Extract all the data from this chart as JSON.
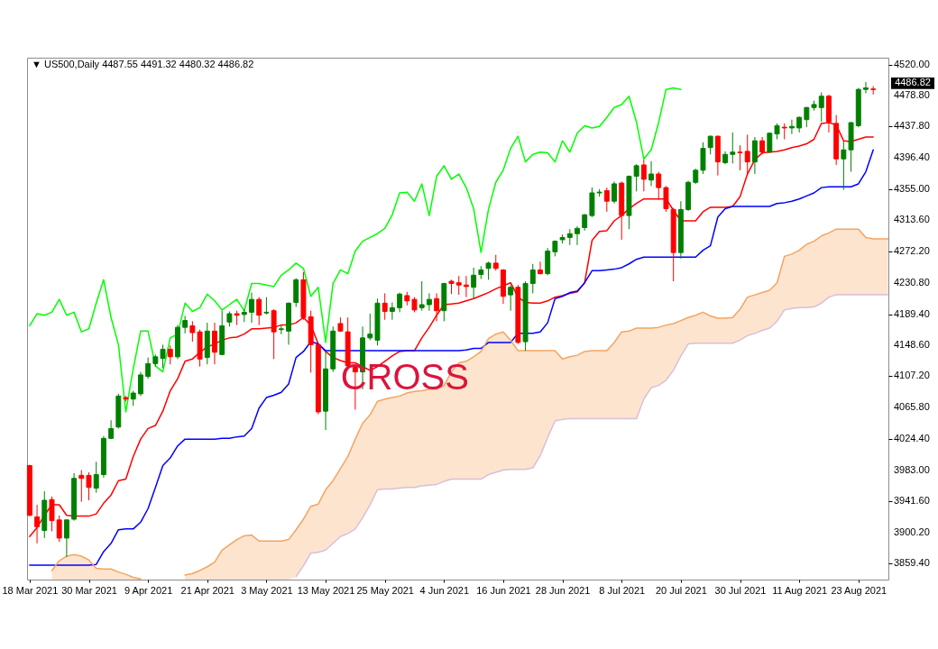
{
  "chart_data": {
    "type": "candlestick",
    "title": "▼ US500,Daily 4487.55 4491.32 4480.32 4486.82",
    "categories": [
      "18 Mar 2021",
      null,
      null,
      null,
      null,
      null,
      null,
      null,
      "30 Mar 2021",
      null,
      null,
      null,
      null,
      null,
      null,
      null,
      "9 Apr 2021",
      null,
      null,
      null,
      null,
      null,
      null,
      null,
      "21 Apr 2021",
      null,
      null,
      null,
      null,
      null,
      null,
      null,
      "3 May 2021",
      null,
      null,
      null,
      null,
      null,
      null,
      null,
      "13 May 2021",
      null,
      null,
      null,
      null,
      null,
      null,
      null,
      "25 May 2021",
      null,
      null,
      null,
      null,
      null,
      null,
      null,
      "4 Jun 2021",
      null,
      null,
      null,
      null,
      null,
      null,
      null,
      "16 Jun 2021",
      null,
      null,
      null,
      null,
      null,
      null,
      null,
      "28 Jun 2021",
      null,
      null,
      null,
      null,
      null,
      null,
      null,
      "8 Jul 2021",
      null,
      null,
      null,
      null,
      null,
      null,
      null,
      "20 Jul 2021",
      null,
      null,
      null,
      null,
      null,
      null,
      null,
      "30 Jul 2021",
      null,
      null,
      null,
      null,
      null,
      null,
      null,
      "11 Aug 2021",
      null,
      null,
      null,
      null,
      null,
      null,
      null,
      "23 Aug 2021",
      null,
      null,
      null,
      null
    ],
    "ohlc": [
      [
        3989,
        3990,
        3922,
        3923
      ],
      [
        3921,
        3937,
        3886,
        3908
      ],
      [
        3903,
        3955,
        3893,
        3943
      ],
      [
        3944,
        3948,
        3902,
        3916
      ],
      [
        3917,
        3923,
        3888,
        3893
      ],
      [
        3893,
        3918,
        3868,
        3917
      ],
      [
        3918,
        3979,
        3916,
        3972
      ],
      [
        3976,
        3983,
        3941,
        3972
      ],
      [
        3976,
        3980,
        3943,
        3960
      ],
      [
        3959,
        3994,
        3953,
        3977
      ],
      [
        3977,
        4028,
        3973,
        4025
      ],
      [
        4025,
        4049,
        4024,
        4038
      ],
      [
        4040,
        4084,
        4038,
        4081
      ],
      [
        4079,
        4081,
        4074,
        4077
      ],
      [
        4077,
        4088,
        4068,
        4085
      ],
      [
        4084,
        4113,
        4081,
        4109
      ],
      [
        4107,
        4132,
        4104,
        4124
      ],
      [
        4124,
        4136,
        4120,
        4133
      ],
      [
        4131,
        4149,
        4118,
        4143
      ],
      [
        4143,
        4148,
        4123,
        4133
      ],
      [
        4133,
        4175,
        4130,
        4172
      ],
      [
        4172,
        4187,
        4164,
        4181
      ],
      [
        4174,
        4180,
        4153,
        4165
      ],
      [
        4166,
        4169,
        4120,
        4130
      ],
      [
        4132,
        4178,
        4123,
        4167
      ],
      [
        4167,
        4178,
        4123,
        4139
      ],
      [
        4136,
        4194,
        4135,
        4174
      ],
      [
        4179,
        4193,
        4173,
        4190
      ],
      [
        4190,
        4194,
        4175,
        4188
      ],
      [
        4189,
        4196,
        4179,
        4192
      ],
      [
        4192,
        4218,
        4178,
        4209
      ],
      [
        4209,
        4212,
        4175,
        4188
      ],
      [
        4191,
        4212,
        4189,
        4192
      ],
      [
        4194,
        4196,
        4130,
        4166
      ],
      [
        4169,
        4175,
        4163,
        4170
      ],
      [
        4167,
        4205,
        4149,
        4204
      ],
      [
        4205,
        4237,
        4199,
        4235
      ],
      [
        4235,
        4245,
        4182,
        4185
      ],
      [
        4186,
        4194,
        4112,
        4149
      ],
      [
        4149,
        4150,
        4057,
        4060
      ],
      [
        4061,
        4140,
        4036,
        4117
      ],
      [
        4117,
        4173,
        4113,
        4167
      ],
      [
        4177,
        4185,
        4166,
        4167
      ],
      [
        4166,
        4185,
        4116,
        4121
      ],
      [
        4119,
        4123,
        4063,
        4113
      ],
      [
        4113,
        4173,
        4090,
        4158
      ],
      [
        4158,
        4190,
        4155,
        4163
      ],
      [
        4155,
        4210,
        4148,
        4204
      ],
      [
        4204,
        4217,
        4182,
        4193
      ],
      [
        4193,
        4205,
        4182,
        4198
      ],
      [
        4198,
        4218,
        4192,
        4216
      ],
      [
        4214,
        4219,
        4201,
        4207
      ],
      [
        4209,
        4212,
        4192,
        4195
      ],
      [
        4198,
        4233,
        4194,
        4202
      ],
      [
        4202,
        4217,
        4194,
        4209
      ],
      [
        4210,
        4217,
        4180,
        4194
      ],
      [
        4194,
        4231,
        4180,
        4230
      ],
      [
        4233,
        4235,
        4216,
        4230
      ],
      [
        4231,
        4240,
        4215,
        4228
      ],
      [
        4228,
        4240,
        4212,
        4226
      ],
      [
        4225,
        4251,
        4210,
        4241
      ],
      [
        4242,
        4253,
        4236,
        4248
      ],
      [
        4250,
        4259,
        4235,
        4257
      ],
      [
        4257,
        4268,
        4247,
        4250
      ],
      [
        4248,
        4249,
        4203,
        4213
      ],
      [
        4215,
        4228,
        4194,
        4225
      ],
      [
        4225,
        4228,
        4150,
        4152
      ],
      [
        4153,
        4233,
        4141,
        4230
      ],
      [
        4230,
        4256,
        4217,
        4248
      ],
      [
        4248,
        4259,
        4242,
        4243
      ],
      [
        4243,
        4277,
        4241,
        4273
      ],
      [
        4272,
        4287,
        4266,
        4286
      ],
      [
        4288,
        4295,
        4283,
        4291
      ],
      [
        4291,
        4302,
        4281,
        4296
      ],
      [
        4296,
        4306,
        4281,
        4303
      ],
      [
        4304,
        4322,
        4300,
        4321
      ],
      [
        4320,
        4357,
        4318,
        4350
      ],
      [
        4350,
        4355,
        4345,
        4351
      ],
      [
        4353,
        4357,
        4325,
        4339
      ],
      [
        4339,
        4365,
        4336,
        4362
      ],
      [
        4363,
        4365,
        4288,
        4320
      ],
      [
        4320,
        4373,
        4302,
        4372
      ],
      [
        4372,
        4388,
        4352,
        4386
      ],
      [
        4387,
        4394,
        4352,
        4368
      ],
      [
        4367,
        4392,
        4359,
        4375
      ],
      [
        4375,
        4378,
        4341,
        4357
      ],
      [
        4357,
        4359,
        4325,
        4329
      ],
      [
        4328,
        4330,
        4233,
        4271
      ],
      [
        4271,
        4339,
        4263,
        4328
      ],
      [
        4328,
        4366,
        4326,
        4364
      ],
      [
        4364,
        4382,
        4362,
        4380
      ],
      [
        4380,
        4417,
        4375,
        4409
      ],
      [
        4410,
        4426,
        4401,
        4425
      ],
      [
        4425,
        4426,
        4373,
        4391
      ],
      [
        4390,
        4405,
        4388,
        4401
      ],
      [
        4401,
        4430,
        4389,
        4404
      ],
      [
        4404,
        4413,
        4380,
        4403
      ],
      [
        4405,
        4427,
        4375,
        4391
      ],
      [
        4391,
        4424,
        4375,
        4419
      ],
      [
        4419,
        4424,
        4401,
        4404
      ],
      [
        4404,
        4430,
        4403,
        4429
      ],
      [
        4428,
        4442,
        4421,
        4439
      ],
      [
        4437,
        4442,
        4421,
        4436
      ],
      [
        4436,
        4447,
        4428,
        4438
      ],
      [
        4436,
        4451,
        4430,
        4450
      ],
      [
        4447,
        4464,
        4437,
        4463
      ],
      [
        4463,
        4472,
        4459,
        4467
      ],
      [
        4463,
        4483,
        4444,
        4478
      ],
      [
        4478,
        4480,
        4430,
        4444
      ],
      [
        4442,
        4453,
        4387,
        4395
      ],
      [
        4395,
        4418,
        4354,
        4407
      ],
      [
        4407,
        4444,
        4378,
        4443
      ],
      [
        4439,
        4489,
        4437,
        4487
      ],
      [
        4487,
        4497,
        4482,
        4489
      ],
      [
        4487.55,
        4491.32,
        4480.32,
        4486.82
      ],
      null,
      null
    ],
    "colors": [
      "#ff0000",
      "#ff0000",
      "#008000",
      "#ff0000",
      "#ff0000",
      "#008000",
      "#008000",
      "#ff0000",
      "#ff0000",
      "#008000",
      "#008000",
      "#008000",
      "#008000",
      "#ff0000",
      "#008000",
      "#008000",
      "#008000",
      "#008000",
      "#008000",
      "#ff0000",
      "#008000",
      "#008000",
      "#ff0000",
      "#ff0000",
      "#008000",
      "#ff0000",
      "#008000",
      "#008000",
      "#ff0000",
      "#008000",
      "#008000",
      "#ff0000",
      "#008000",
      "#ff0000",
      "#008000",
      "#008000",
      "#008000",
      "#ff0000",
      "#ff0000",
      "#ff0000",
      "#008000",
      "#008000",
      "#ff0000",
      "#ff0000",
      "#ff0000",
      "#008000",
      "#008000",
      "#008000",
      "#ff0000",
      "#008000",
      "#008000",
      "#ff0000",
      "#ff0000",
      "#008000",
      "#008000",
      "#ff0000",
      "#008000",
      "#ff0000",
      "#ff0000",
      "#ff0000",
      "#008000",
      "#008000",
      "#008000",
      "#ff0000",
      "#ff0000",
      "#008000",
      "#ff0000",
      "#008000",
      "#008000",
      "#ff0000",
      "#008000",
      "#008000",
      "#008000",
      "#008000",
      "#008000",
      "#008000",
      "#008000",
      "#008000",
      "#ff0000",
      "#008000",
      "#ff0000",
      "#008000",
      "#008000",
      "#ff0000",
      "#008000",
      "#ff0000",
      "#ff0000",
      "#ff0000",
      "#008000",
      "#008000",
      "#008000",
      "#008000",
      "#008000",
      "#ff0000",
      "#008000",
      "#008000",
      "#ff0000",
      "#ff0000",
      "#008000",
      "#ff0000",
      "#008000",
      "#008000",
      "#ff0000",
      "#008000",
      "#008000",
      "#008000",
      "#008000",
      "#008000",
      "#ff0000",
      "#ff0000",
      "#008000",
      "#008000",
      "#008000",
      "#008000",
      "#ff0000",
      null,
      null
    ],
    "series": [
      {
        "type": "line",
        "color": "#ff0000",
        "values": [
          3895,
          3907,
          3923,
          3937,
          3937,
          3923,
          3922,
          3922,
          3922,
          3925,
          3939,
          3950,
          3969,
          3971,
          4001,
          4024,
          4038,
          4042,
          4061,
          4088,
          4104,
          4127,
          4130,
          4139,
          4146,
          4150,
          4155,
          4158,
          4159,
          4163,
          4170,
          4170,
          4171,
          4172,
          4175,
          4175,
          4178,
          4185,
          4175,
          4150,
          4140,
          4132,
          4128,
          4125,
          4125,
          4120,
          4115,
          4120,
          4127,
          4134,
          4140,
          4141,
          4141,
          4158,
          4172,
          4188,
          4202,
          4203,
          4204,
          4207,
          4210,
          4214,
          4218,
          4223,
          4227,
          4231,
          4212,
          4205,
          4204,
          4204,
          4207,
          4212,
          4214,
          4217,
          4219,
          4231,
          4287,
          4299,
          4300,
          4313,
          4320,
          4329,
          4336,
          4342,
          4342,
          4342,
          4342,
          4327,
          4313,
          4313,
          4313,
          4325,
          4331,
          4331,
          4331,
          4332,
          4345,
          4375,
          4394,
          4403,
          4404,
          4405,
          4407,
          4410,
          4412,
          4415,
          4421,
          4442,
          4443,
          4440,
          4419,
          4418,
          4421,
          4424,
          4424,
          null,
          null
        ]
      },
      {
        "type": "line",
        "color": "#0000ff",
        "values": [
          3857,
          3857,
          3857,
          3857,
          3857,
          3857,
          3857,
          3857,
          3857,
          3858,
          3875,
          3886,
          3904,
          3905,
          3905,
          3914,
          3932,
          3960,
          3989,
          3999,
          4015,
          4024,
          4024,
          4024,
          4024,
          4024,
          4025,
          4025,
          4027,
          4028,
          4038,
          4065,
          4079,
          4082,
          4086,
          4097,
          4132,
          4140,
          4153,
          4150,
          4141,
          4141,
          4141,
          4141,
          4141,
          4141,
          4141,
          4141,
          4141,
          4141,
          4141,
          4141,
          4141,
          4141,
          4141,
          4141,
          4141,
          4141,
          4141,
          4142,
          4144,
          4144,
          4152,
          4152,
          4152,
          4152,
          4164,
          4164,
          4164,
          4166,
          4178,
          4210,
          4213,
          4218,
          4220,
          4231,
          4247,
          4247,
          4248,
          4249,
          4251,
          4256,
          4262,
          4265,
          4265,
          4265,
          4265,
          4265,
          4265,
          4265,
          4265,
          4274,
          4280,
          4318,
          4329,
          4332,
          4332,
          4332,
          4332,
          4332,
          4332,
          4336,
          4337,
          4339,
          4342,
          4346,
          4350,
          4357,
          4358,
          4358,
          4358,
          4358,
          4362,
          4378,
          4407,
          null,
          null
        ]
      },
      {
        "type": "line",
        "color": "#00ff00",
        "values": [
          4174,
          4190,
          4188,
          4192,
          4209,
          4188,
          4192,
          4166,
          4170,
          4204,
          4235,
          4185,
          4149,
          4060,
          4117,
          4167,
          4167,
          4121,
          4113,
          4158,
          4163,
          4204,
          4193,
          4198,
          4216,
          4207,
          4195,
          4202,
          4209,
          4194,
          4230,
          4230,
          4228,
          4226,
          4241,
          4248,
          4257,
          4250,
          4213,
          4225,
          4152,
          4230,
          4248,
          4243,
          4273,
          4286,
          4291,
          4296,
          4303,
          4321,
          4350,
          4351,
          4339,
          4362,
          4320,
          4372,
          4386,
          4368,
          4375,
          4357,
          4329,
          4271,
          4328,
          4364,
          4380,
          4409,
          4425,
          4391,
          4401,
          4404,
          4403,
          4391,
          4419,
          4404,
          4429,
          4439,
          4436,
          4438,
          4450,
          4463,
          4467,
          4478,
          4444,
          4395,
          4407,
          4443,
          4487,
          4489,
          4487,
          null,
          null,
          null,
          null,
          null,
          null,
          null,
          null,
          null,
          null,
          null,
          null,
          null,
          null,
          null,
          null,
          null,
          null,
          null,
          null,
          null,
          null,
          null,
          null,
          null,
          null,
          null,
          null
        ]
      },
      {
        "type": "line",
        "color": "#f4a460",
        "values": [
          null,
          null,
          null,
          3850,
          3863,
          3869,
          3871,
          3869,
          3864,
          3853,
          3852,
          3852,
          3848,
          3845,
          3841,
          3839,
          null,
          null,
          null,
          null,
          null,
          3844,
          3846,
          3850,
          3855,
          3861,
          3877,
          3884,
          3891,
          3896,
          3897,
          3889,
          3889,
          3889,
          3889,
          3891,
          3904,
          3918,
          3935,
          3938,
          3957,
          3969,
          3985,
          4001,
          4024,
          4045,
          4056,
          4074,
          4077,
          4079,
          4081,
          4085,
          4087,
          4088,
          4090,
          4090,
          4095,
          4113,
          4125,
          4127,
          4133,
          4140,
          4157,
          4163,
          4166,
          4155,
          4141,
          4141,
          4141,
          4141,
          4141,
          4141,
          4130,
          4133,
          4135,
          4140,
          4141,
          4141,
          4141,
          4152,
          4166,
          4167,
          4171,
          4171,
          4171,
          4172,
          4175,
          4177,
          4181,
          4185,
          4188,
          4192,
          4187,
          4184,
          4184,
          4185,
          4196,
          4212,
          4215,
          4218,
          4221,
          4231,
          4266,
          4269,
          4274,
          4282,
          4286,
          4293,
          4297,
          4302,
          4302,
          4302,
          4302,
          4291,
          4289,
          4289,
          4289
        ],
        "lower": [
          null,
          null,
          null,
          3838,
          3838,
          3838,
          3838,
          3838,
          3838,
          3838,
          3838,
          3838,
          3838,
          3838,
          3838,
          3838,
          null,
          null,
          null,
          null,
          null,
          3838,
          3838,
          3838,
          3838,
          3838,
          3838,
          3838,
          3838,
          3838,
          3838,
          3838,
          3838,
          3838,
          3838,
          3838,
          3842,
          3856,
          3873,
          3874,
          3877,
          3886,
          3895,
          3899,
          3905,
          3920,
          3937,
          3957,
          3958,
          3958,
          3959,
          3960,
          3960,
          3962,
          3963,
          3964,
          3968,
          3971,
          3971,
          3971,
          3971,
          3971,
          3977,
          3980,
          3983,
          3984,
          3984,
          3984,
          3986,
          4002,
          4026,
          4048,
          4050,
          4051,
          4051,
          4051,
          4051,
          4051,
          4051,
          4051,
          4051,
          4051,
          4051,
          4077,
          4092,
          4095,
          4102,
          4115,
          4134,
          4150,
          4151,
          4151,
          4151,
          4151,
          4151,
          4151,
          4155,
          4161,
          4164,
          4168,
          4171,
          4180,
          4195,
          4197,
          4198,
          4198,
          4199,
          4204,
          4212,
          4215,
          4215,
          4215,
          4215,
          4215,
          4215,
          4215,
          4215
        ],
        "upper": [
          null,
          null,
          null,
          3850,
          3863,
          3869,
          3871,
          3869,
          3864,
          3853,
          3852,
          3852,
          3848,
          3845,
          3841,
          3839,
          null,
          null,
          null,
          null,
          null,
          3844,
          3846,
          3850,
          3855,
          3861,
          3877,
          3884,
          3891,
          3896,
          3897,
          3889,
          3889,
          3889,
          3889,
          3891,
          3904,
          3918,
          3935,
          3938,
          3957,
          3969,
          3985,
          4001,
          4024,
          4045,
          4056,
          4074,
          4077,
          4079,
          4081,
          4085,
          4087,
          4088,
          4090,
          4090,
          4095,
          4113,
          4125,
          4127,
          4133,
          4140,
          4157,
          4163,
          4166,
          4155,
          4141,
          4141,
          4141,
          4141,
          4141,
          4141,
          4130,
          4133,
          4135,
          4140,
          4141,
          4141,
          4141,
          4152,
          4166,
          4167,
          4171,
          4171,
          4171,
          4172,
          4175,
          4177,
          4181,
          4185,
          4188,
          4192,
          4187,
          4184,
          4184,
          4185,
          4196,
          4212,
          4215,
          4218,
          4221,
          4231,
          4266,
          4269,
          4274,
          4282,
          4286,
          4293,
          4297,
          4302,
          4302,
          4302,
          4302,
          4291,
          4289,
          4289,
          4289
        ]
      },
      {
        "type": "line",
        "color": "#d8bfd8",
        "values": [
          null,
          null,
          null,
          null,
          null,
          null,
          null,
          null,
          null,
          null,
          null,
          null,
          null,
          null,
          null,
          null,
          null,
          null,
          null,
          null,
          null,
          null,
          null,
          null,
          null,
          null,
          null,
          null,
          null,
          null,
          null,
          null,
          null,
          null,
          null,
          null,
          3842,
          3856,
          3873,
          3874,
          3877,
          3886,
          3895,
          3899,
          3905,
          3920,
          3937,
          3957,
          3958,
          3958,
          3959,
          3960,
          3960,
          3962,
          3963,
          3964,
          3968,
          3971,
          3971,
          3971,
          3971,
          3971,
          3977,
          3980,
          3983,
          3984,
          3984,
          3984,
          3986,
          4002,
          4026,
          4048,
          4050,
          4051,
          4051,
          4051,
          4051,
          4051,
          4051,
          4051,
          4051,
          4051,
          4051,
          4077,
          4092,
          4095,
          4102,
          4115,
          4134,
          4150,
          4151,
          4151,
          4151,
          4151,
          4151,
          4151,
          4155,
          4161,
          4164,
          4168,
          4171,
          4180,
          4195,
          4197,
          4198,
          4198,
          4199,
          4204,
          4212,
          4215,
          4215,
          4215,
          4215,
          4215,
          4215,
          4215,
          4215
        ]
      }
    ],
    "ylim": [
      3838,
      4529
    ],
    "yticks": [
      {
        "value": 4520,
        "label": "4520.00"
      },
      {
        "value": 4478.8,
        "label": "4478.80"
      },
      {
        "value": 4437.8,
        "label": "4437.80"
      },
      {
        "value": 4396.4,
        "label": "4396.40"
      },
      {
        "value": 4355,
        "label": "4355.00"
      },
      {
        "value": 4313.6,
        "label": "4313.60"
      },
      {
        "value": 4272.2,
        "label": "4272.20"
      },
      {
        "value": 4230.8,
        "label": "4230.80"
      },
      {
        "value": 4189.4,
        "label": "4189.40"
      },
      {
        "value": 4148.6,
        "label": "4148.60"
      },
      {
        "value": 4107.2,
        "label": "4107.20"
      },
      {
        "value": 4065.8,
        "label": "4065.80"
      },
      {
        "value": 4024.4,
        "label": "4024.40"
      },
      {
        "value": 3983,
        "label": "3983.00"
      },
      {
        "value": 3941.6,
        "label": "3941.60"
      },
      {
        "value": 3900.2,
        "label": "3900.20"
      },
      {
        "value": 3859.4,
        "label": "3859.40"
      }
    ],
    "annotations": [
      "CROSS",
      "4486.82"
    ]
  }
}
